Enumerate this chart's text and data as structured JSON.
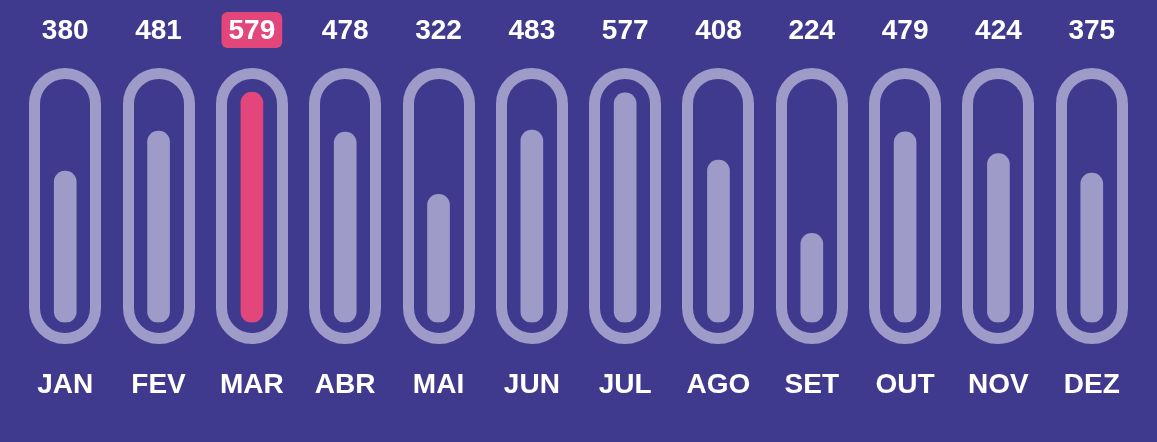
{
  "chart_data": {
    "type": "bar",
    "categories": [
      "JAN",
      "FEV",
      "MAR",
      "ABR",
      "MAI",
      "JUN",
      "JUL",
      "AGO",
      "SET",
      "OUT",
      "NOV",
      "DEZ"
    ],
    "values": [
      380,
      481,
      579,
      478,
      322,
      483,
      577,
      408,
      224,
      479,
      424,
      375
    ],
    "colors": [
      "#9e9bc9",
      "#9e9bc9",
      "#e2467a",
      "#9e9bc9",
      "#9e9bc9",
      "#9e9bc9",
      "#9e9bc9",
      "#9e9bc9",
      "#9e9bc9",
      "#9e9bc9",
      "#9e9bc9",
      "#9e9bc9"
    ],
    "data_labels": true,
    "legend": false,
    "grid": false
  }
}
